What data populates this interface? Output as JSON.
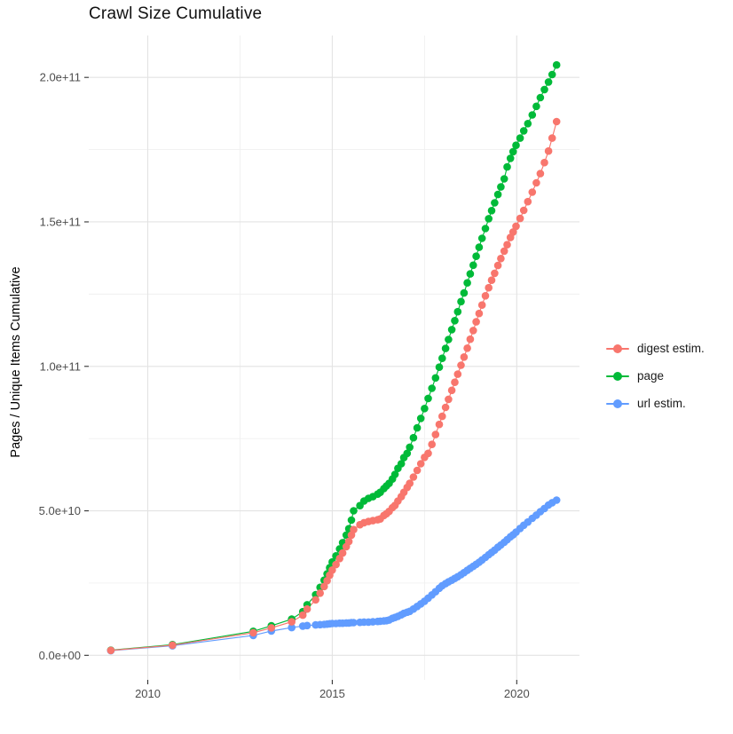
{
  "title": "Crawl Size Cumulative",
  "axes": {
    "y_title": "Pages / Unique Items Cumulative",
    "x_title": "",
    "y_ticks": [
      {
        "value_e9": 0,
        "label": "0.0e+00"
      },
      {
        "value_e9": 50,
        "label": "5.0e+10"
      },
      {
        "value_e9": 100,
        "label": "1.0e+11"
      },
      {
        "value_e9": 150,
        "label": "1.5e+11"
      },
      {
        "value_e9": 200,
        "label": "2.0e+11"
      }
    ],
    "x_ticks": [
      {
        "value": 2010,
        "label": "2010"
      },
      {
        "value": 2015,
        "label": "2015"
      },
      {
        "value": 2020,
        "label": "2020"
      }
    ],
    "x_minor": [
      2012.5,
      2017.5
    ],
    "y_minor_e9": [
      25,
      75,
      125,
      175
    ]
  },
  "legend": {
    "position": "right",
    "items": [
      {
        "label": "digest estim.",
        "color": "#F8766D"
      },
      {
        "label": "page",
        "color": "#00BA38"
      },
      {
        "label": "url estim.",
        "color": "#619CFF"
      }
    ]
  },
  "colors": {
    "grid_major": "#e3e3e3",
    "grid_minor": "#f0f0f0",
    "tick_mark": "#333333",
    "tick_label": "#4d4d4d"
  },
  "chart_data": {
    "type": "scatter",
    "title": "Crawl Size Cumulative",
    "xlabel": "",
    "ylabel": "Pages / Unique Items Cumulative",
    "x_unit": "decimal year (crawl date)",
    "value_unit": "pages / unique items, in billions (1e9)",
    "xlim": [
      2008.4,
      2021.7
    ],
    "ylim_e9": [
      -8.5,
      214.5
    ],
    "grid": true,
    "legend_position": "right",
    "x": [
      2009.0,
      2010.67,
      2012.86,
      2013.35,
      2013.9,
      2014.2,
      2014.32,
      2014.55,
      2014.67,
      2014.78,
      2014.86,
      2014.93,
      2015.0,
      2015.1,
      2015.2,
      2015.28,
      2015.38,
      2015.45,
      2015.52,
      2015.58,
      2015.75,
      2015.86,
      2015.98,
      2016.1,
      2016.23,
      2016.3,
      2016.4,
      2016.47,
      2016.54,
      2016.63,
      2016.7,
      2016.78,
      2016.87,
      2016.94,
      2017.03,
      2017.1,
      2017.2,
      2017.3,
      2017.4,
      2017.5,
      2017.6,
      2017.7,
      2017.8,
      2017.9,
      2017.98,
      2018.07,
      2018.15,
      2018.24,
      2018.32,
      2018.4,
      2018.49,
      2018.57,
      2018.66,
      2018.74,
      2018.82,
      2018.9,
      2018.98,
      2019.06,
      2019.15,
      2019.24,
      2019.32,
      2019.4,
      2019.49,
      2019.57,
      2019.66,
      2019.74,
      2019.83,
      2019.9,
      2019.98,
      2020.09,
      2020.19,
      2020.3,
      2020.42,
      2020.53,
      2020.64,
      2020.75,
      2020.86,
      2020.96,
      2021.08
    ],
    "series": [
      {
        "name": "digest estim.",
        "color": "#F8766D",
        "values_e9": [
          1.7,
          3.5,
          7.8,
          9.5,
          11.6,
          13.9,
          16.0,
          19.2,
          21.5,
          23.8,
          25.8,
          27.7,
          29.5,
          31.4,
          33.5,
          35.4,
          37.6,
          39.4,
          41.6,
          43.5,
          45.2,
          45.9,
          46.3,
          46.6,
          46.9,
          47.2,
          48.4,
          49.0,
          49.8,
          51.1,
          51.9,
          53.4,
          54.9,
          56.4,
          58.1,
          59.5,
          61.7,
          64.0,
          66.3,
          68.5,
          69.9,
          73.0,
          76.4,
          79.9,
          82.7,
          85.8,
          88.6,
          91.7,
          94.5,
          97.3,
          100.4,
          103.2,
          106.3,
          109.4,
          112.4,
          115.4,
          118.3,
          121.2,
          124.4,
          127.2,
          129.8,
          132.2,
          134.9,
          137.3,
          139.9,
          142.1,
          144.6,
          146.5,
          148.5,
          151.2,
          154.0,
          157.0,
          160.3,
          163.5,
          166.7,
          170.5,
          174.5,
          179.0,
          184.7
        ]
      },
      {
        "name": "page",
        "color": "#00BA38",
        "values_e9": [
          1.8,
          3.7,
          8.3,
          10.2,
          12.5,
          15.1,
          17.5,
          21.0,
          23.5,
          26.0,
          28.2,
          30.3,
          32.3,
          34.4,
          36.8,
          39.0,
          41.6,
          43.8,
          46.8,
          50.0,
          51.8,
          53.4,
          54.3,
          54.9,
          55.8,
          56.4,
          57.7,
          58.6,
          59.5,
          61.0,
          62.6,
          64.7,
          66.3,
          68.4,
          69.9,
          72.0,
          75.3,
          78.7,
          82.0,
          85.4,
          88.9,
          92.4,
          96.0,
          99.7,
          102.8,
          106.2,
          109.3,
          112.7,
          115.8,
          118.9,
          122.4,
          125.4,
          128.9,
          132.0,
          135.0,
          138.1,
          141.2,
          144.3,
          147.7,
          151.1,
          153.9,
          156.6,
          159.5,
          162.1,
          164.9,
          169.0,
          172.0,
          174.3,
          176.5,
          179.0,
          181.5,
          184.0,
          187.0,
          190.0,
          193.0,
          195.8,
          198.4,
          201.0,
          204.3
        ]
      },
      {
        "name": "url estim.",
        "color": "#619CFF",
        "values_e9": [
          1.6,
          3.3,
          6.9,
          8.4,
          9.6,
          10.1,
          10.3,
          10.5,
          10.6,
          10.7,
          10.8,
          10.9,
          11.0,
          11.0,
          11.1,
          11.1,
          11.2,
          11.2,
          11.3,
          11.3,
          11.4,
          11.5,
          11.5,
          11.6,
          11.7,
          11.8,
          11.9,
          12.0,
          12.2,
          12.8,
          13.1,
          13.5,
          14.0,
          14.5,
          14.9,
          15.2,
          16.0,
          16.9,
          17.8,
          18.7,
          19.8,
          20.9,
          22.0,
          23.2,
          24.1,
          24.8,
          25.4,
          26.0,
          26.6,
          27.2,
          27.9,
          28.6,
          29.4,
          30.1,
          30.8,
          31.5,
          32.2,
          33.0,
          33.9,
          34.8,
          35.6,
          36.4,
          37.4,
          38.2,
          39.1,
          40.0,
          41.0,
          41.7,
          42.6,
          43.9,
          45.0,
          46.1,
          47.4,
          48.5,
          49.7,
          50.8,
          52.0,
          52.8,
          53.7
        ]
      }
    ]
  }
}
